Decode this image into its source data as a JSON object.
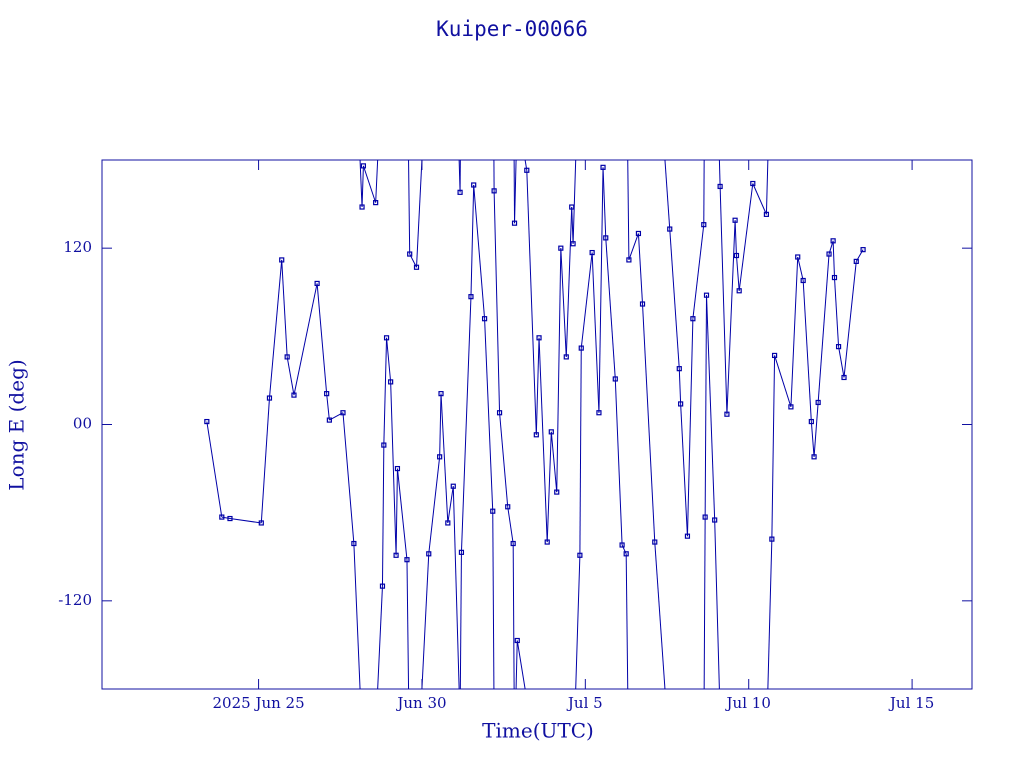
{
  "chart_data": {
    "type": "line",
    "title": "Kuiper-00066",
    "x_label": "Time(UTC)",
    "y_label": "Long E (deg)",
    "color": "#0000a8",
    "xlim": [
      "2025-06-20T05:00",
      "2025-07-16T20:00"
    ],
    "xticks": [
      {
        "value": "2025-06-25T00:00",
        "label": "2025 Jun 25"
      },
      {
        "value": "2025-06-30T00:00",
        "label": "Jun 30"
      },
      {
        "value": "2025-07-05T00:00",
        "label": "Jul 5"
      },
      {
        "value": "2025-07-10T00:00",
        "label": "Jul 10"
      },
      {
        "value": "2025-07-15T00:00",
        "label": "Jul 15"
      }
    ],
    "ylim": [
      -180,
      180
    ],
    "yticks": [
      -120,
      {
        "value": 0,
        "label": "00"
      },
      120
    ],
    "x": [
      "2025-06-23T10:00",
      "2025-06-23T21:00",
      "2025-06-24T03:00",
      "2025-06-25T02:00",
      "2025-06-25T08:00",
      "2025-06-25T17:00",
      "2025-06-25T21:00",
      "2025-06-26T02:00",
      "2025-06-26T19:00",
      "2025-06-27T02:00",
      "2025-06-27T04:00",
      "2025-06-27T14:00",
      "2025-06-27T22:00",
      "2025-06-28T04:00",
      "2025-06-28T05:00",
      "2025-06-28T14:00",
      "2025-06-28T19:00",
      "2025-06-28T20:00",
      "2025-06-28T22:00",
      "2025-06-29T01:00",
      "2025-06-29T05:00",
      "2025-06-29T06:00",
      "2025-06-29T13:00",
      "2025-06-29T15:00",
      "2025-06-29T20:00",
      "2025-06-30T05:00",
      "2025-06-30T13:00",
      "2025-06-30T14:00",
      "2025-06-30T19:00",
      "2025-06-30T23:00",
      "2025-07-01T04:00",
      "2025-07-01T05:00",
      "2025-07-01T12:00",
      "2025-07-01T14:00",
      "2025-07-01T22:00",
      "2025-07-02T04:00",
      "2025-07-02T05:00",
      "2025-07-02T09:00",
      "2025-07-02T15:00",
      "2025-07-02T19:00",
      "2025-07-02T20:00",
      "2025-07-02T22:00",
      "2025-07-03T05:00",
      "2025-07-03T12:00",
      "2025-07-03T14:00",
      "2025-07-03T20:00",
      "2025-07-03T23:00",
      "2025-07-04T03:00",
      "2025-07-04T06:00",
      "2025-07-04T10:00",
      "2025-07-04T14:00",
      "2025-07-04T15:00",
      "2025-07-04T20:00",
      "2025-07-04T21:00",
      "2025-07-05T05:00",
      "2025-07-05T10:00",
      "2025-07-05T13:00",
      "2025-07-05T15:00",
      "2025-07-05T22:00",
      "2025-07-06T03:00",
      "2025-07-06T06:00",
      "2025-07-06T08:00",
      "2025-07-06T15:00",
      "2025-07-06T18:00",
      "2025-07-07T03:00",
      "2025-07-07T14:00",
      "2025-07-07T21:00",
      "2025-07-07T22:00",
      "2025-07-08T03:00",
      "2025-07-08T07:00",
      "2025-07-08T15:00",
      "2025-07-08T16:00",
      "2025-07-08T17:00",
      "2025-07-08T23:00",
      "2025-07-09T03:00",
      "2025-07-09T08:00",
      "2025-07-09T14:00",
      "2025-07-09T15:00",
      "2025-07-09T17:00",
      "2025-07-10T03:00",
      "2025-07-10T13:00",
      "2025-07-10T17:00",
      "2025-07-10T19:00",
      "2025-07-11T07:00",
      "2025-07-11T12:00",
      "2025-07-11T16:00",
      "2025-07-11T22:00",
      "2025-07-12T00:00",
      "2025-07-12T03:00",
      "2025-07-12T11:00",
      "2025-07-12T14:00",
      "2025-07-12T15:00",
      "2025-07-12T18:00",
      "2025-07-12T22:00",
      "2025-07-13T07:00",
      "2025-07-13T12:00"
    ],
    "values": [
      2,
      -63,
      -64,
      -67,
      18,
      112,
      46,
      20,
      96,
      21,
      3,
      8,
      -81,
      148,
      176,
      151,
      -110,
      -14,
      59,
      29,
      -89,
      -30,
      -92,
      116,
      107,
      -88,
      -22,
      21,
      -67,
      -42,
      158,
      -87,
      87,
      163,
      72,
      -59,
      159,
      8,
      -56,
      -81,
      137,
      -147,
      173,
      -7,
      59,
      -80,
      -5,
      -46,
      120,
      46,
      148,
      123,
      -89,
      52,
      117,
      8,
      175,
      127,
      31,
      -82,
      -88,
      112,
      130,
      82,
      -80,
      133,
      38,
      14,
      -76,
      72,
      136,
      -63,
      88,
      -65,
      162,
      7,
      139,
      115,
      91,
      164,
      143,
      -78,
      47,
      12,
      114,
      98,
      2,
      -22,
      15,
      116,
      125,
      100,
      53,
      32,
      111,
      119
    ]
  }
}
